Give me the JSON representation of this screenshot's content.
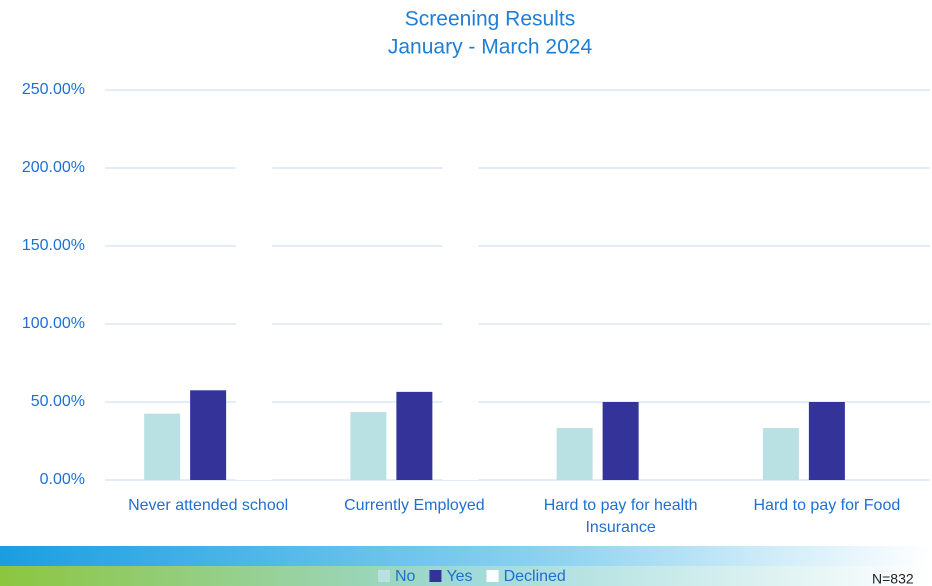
{
  "chart_data": {
    "type": "bar",
    "title": "Screening Results",
    "subtitle": "January - March 2024",
    "categories": [
      "Never attended school",
      "Currently Employed",
      "Hard to pay for health Insurance",
      "Hard to pay for Food"
    ],
    "series": [
      {
        "name": "No",
        "color": "#b9e0e3",
        "values": [
          42.5,
          43.5,
          33.3,
          33.3
        ]
      },
      {
        "name": "Yes",
        "color": "#333399",
        "values": [
          57.5,
          56.5,
          50,
          50
        ]
      },
      {
        "name": "Declined",
        "color": "#ffffff",
        "values": [
          202,
          202,
          0,
          0
        ]
      }
    ],
    "ylim": [
      0,
      250
    ],
    "yticks": [
      {
        "value": 0,
        "label": "0.00%"
      },
      {
        "value": 50,
        "label": "50.00%"
      },
      {
        "value": 100,
        "label": "100.00%"
      },
      {
        "value": 150,
        "label": "150.00%"
      },
      {
        "value": 200,
        "label": "200.00%"
      },
      {
        "value": 250,
        "label": "250.00%"
      }
    ],
    "grid": true,
    "legend": "bottom",
    "annotation": "N=832"
  }
}
